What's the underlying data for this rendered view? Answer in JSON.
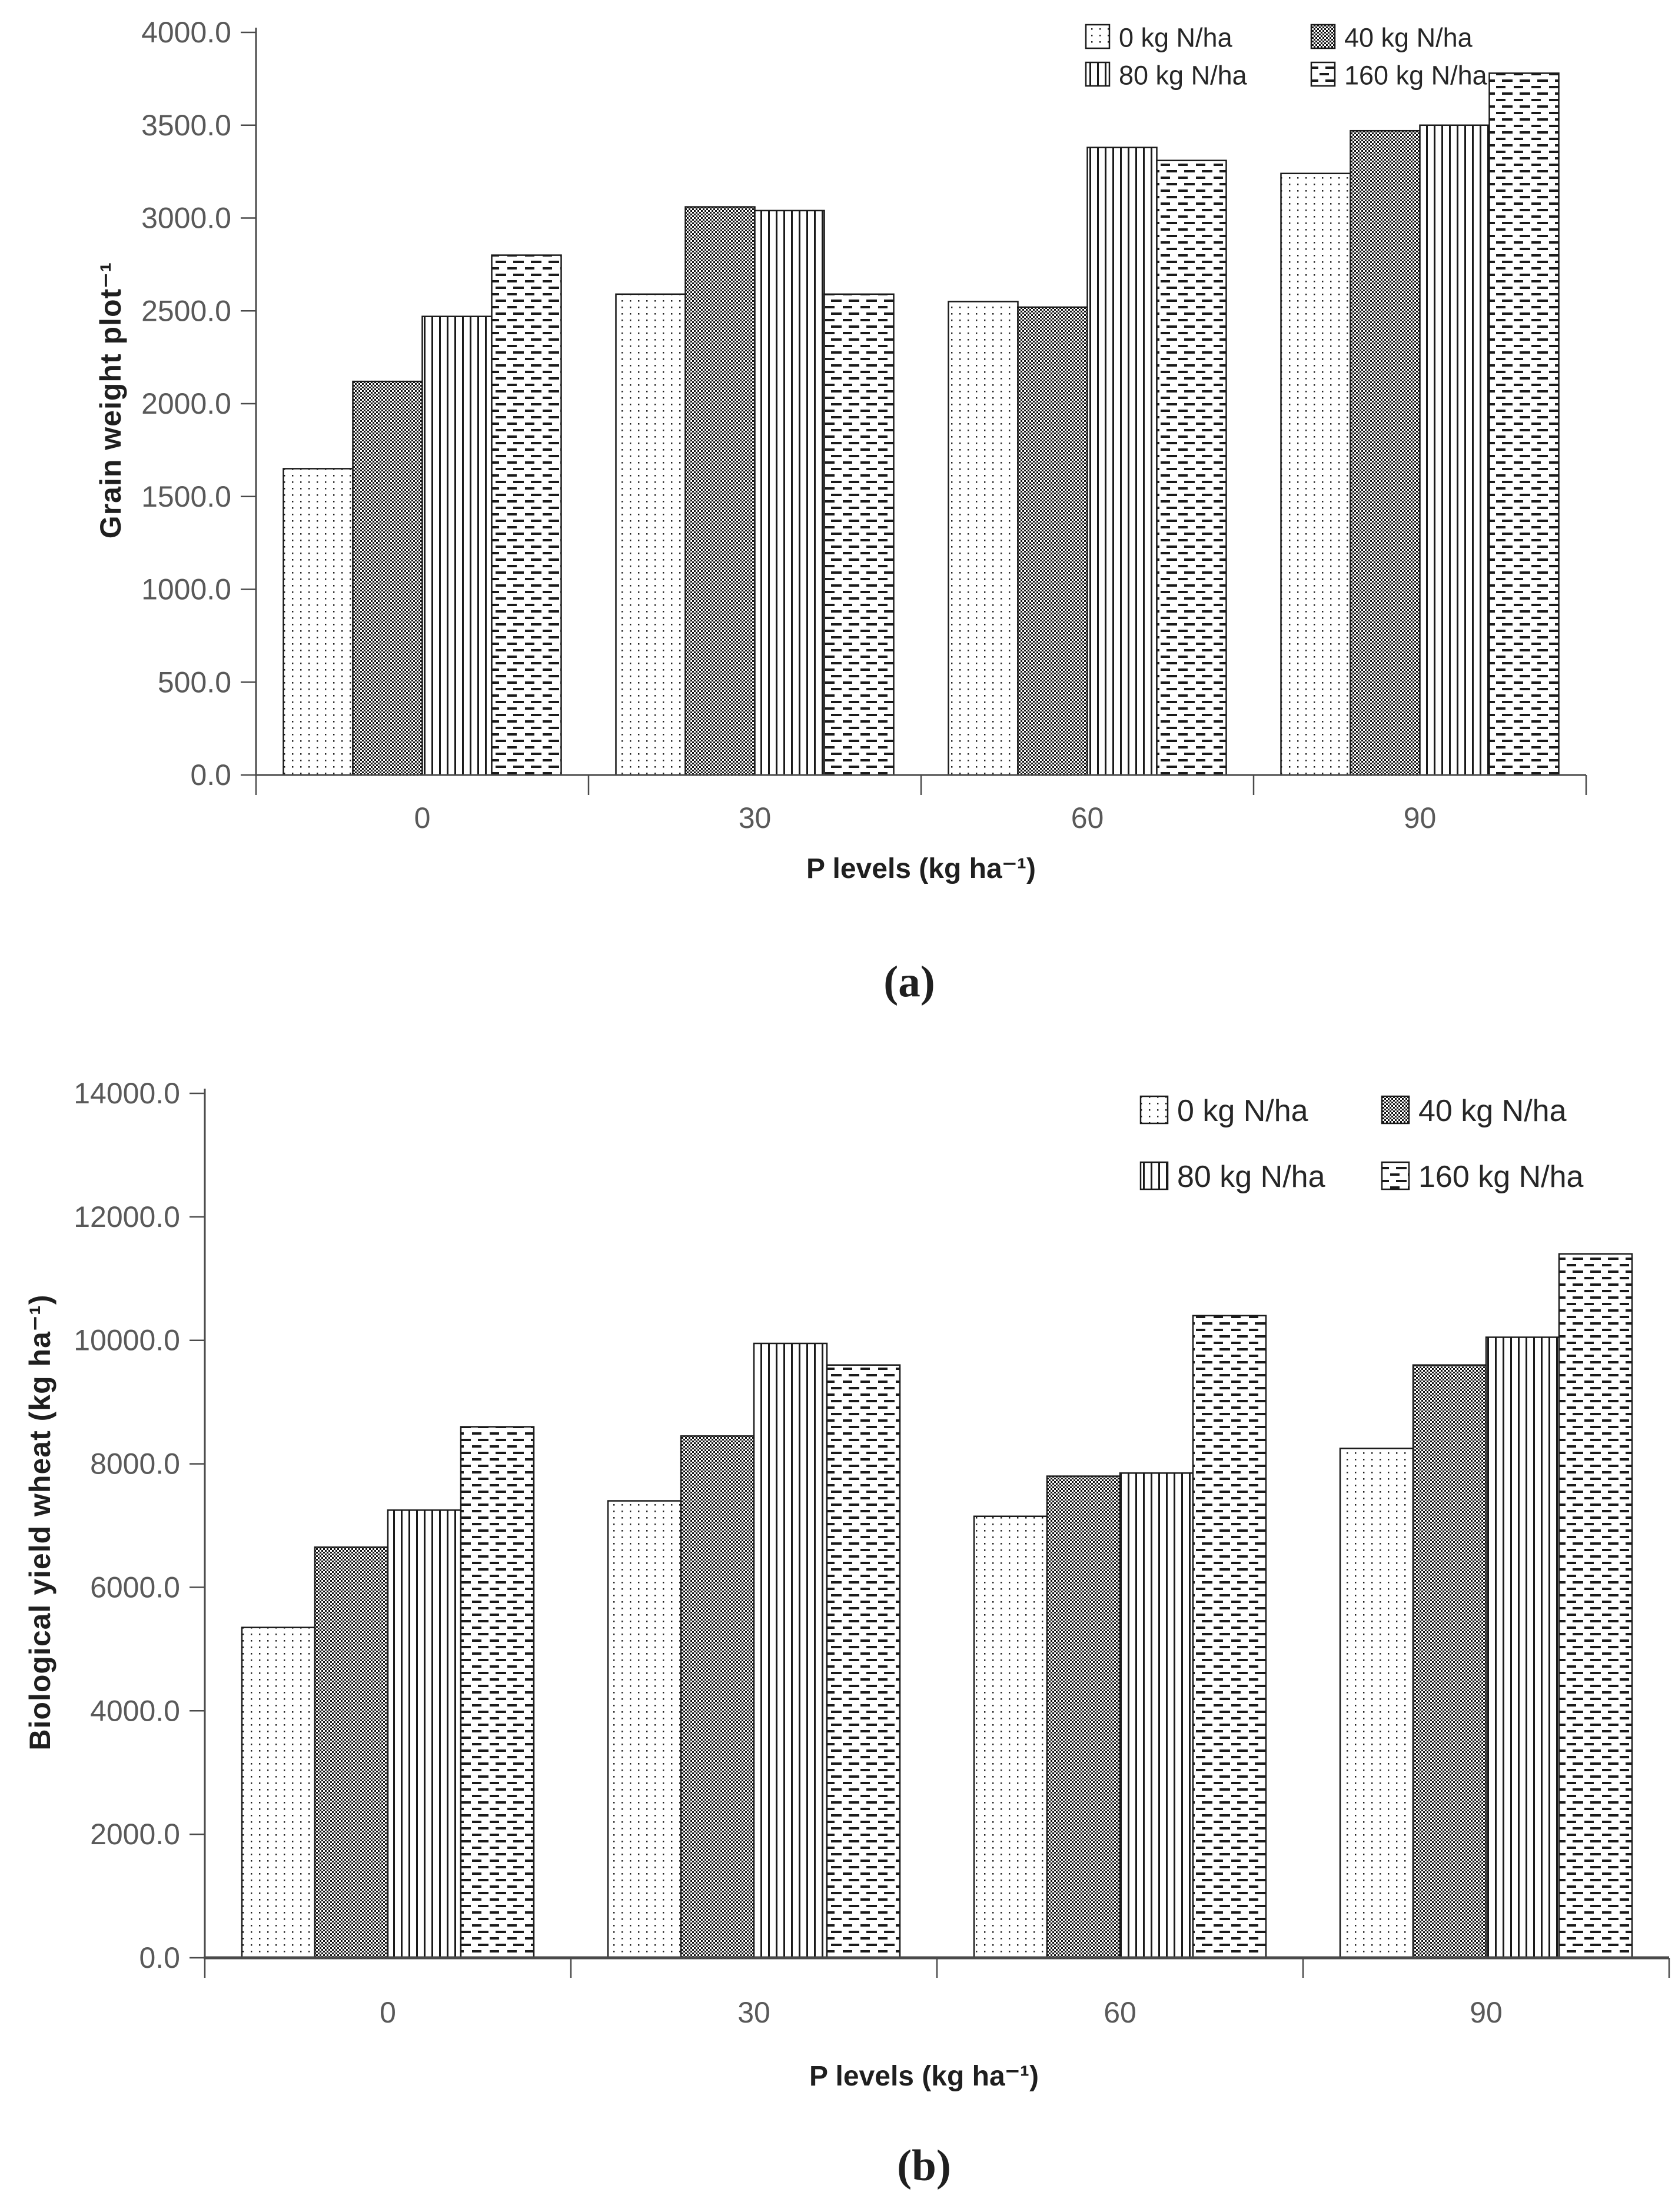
{
  "figure": {
    "background": "#ffffff"
  },
  "colors": {
    "ink": "#1a1a1a",
    "axis": "#4a4a4a",
    "tick_label": "#595959",
    "title_text": "#1f1f1f"
  },
  "chart_data": [
    {
      "id": "a",
      "type": "bar",
      "panel_label": "(a)",
      "xlabel": "P levels (kg ha⁻¹)",
      "ylabel": "Grain weight plot⁻¹",
      "categories": [
        "0",
        "30",
        "60",
        "90"
      ],
      "series": [
        {
          "name": "0 kg N/ha",
          "pattern": "dots",
          "values": [
            1650,
            2590,
            2550,
            3240
          ]
        },
        {
          "name": "40 kg N/ha",
          "pattern": "checker",
          "values": [
            2120,
            3060,
            2520,
            3470
          ]
        },
        {
          "name": "80 kg N/ha",
          "pattern": "vlines",
          "values": [
            2470,
            3040,
            3380,
            3500
          ]
        },
        {
          "name": "160 kg N/ha",
          "pattern": "dashes",
          "values": [
            2800,
            2590,
            3310,
            3780
          ]
        }
      ],
      "ylim": [
        0,
        4000
      ],
      "ytick_step": 500,
      "ytick_decimals": 1,
      "legend_position": "top-right",
      "grid": false
    },
    {
      "id": "b",
      "type": "bar",
      "panel_label": "(b)",
      "xlabel": "P levels (kg ha⁻¹)",
      "ylabel": "Biological yield  wheat  (kg ha⁻¹)",
      "categories": [
        "0",
        "30",
        "60",
        "90"
      ],
      "series": [
        {
          "name": "0 kg N/ha",
          "pattern": "dots",
          "values": [
            5350,
            7400,
            7150,
            8250
          ]
        },
        {
          "name": "40 kg N/ha",
          "pattern": "checker",
          "values": [
            6650,
            8450,
            7800,
            9600
          ]
        },
        {
          "name": "80 kg N/ha",
          "pattern": "vlines",
          "values": [
            7250,
            9950,
            7850,
            10050
          ]
        },
        {
          "name": "160 kg N/ha",
          "pattern": "dashes",
          "values": [
            8600,
            9600,
            10400,
            11400
          ]
        }
      ],
      "ylim": [
        0,
        14000
      ],
      "ytick_step": 2000,
      "ytick_decimals": 1,
      "legend_position": "top-right",
      "grid": false
    }
  ]
}
